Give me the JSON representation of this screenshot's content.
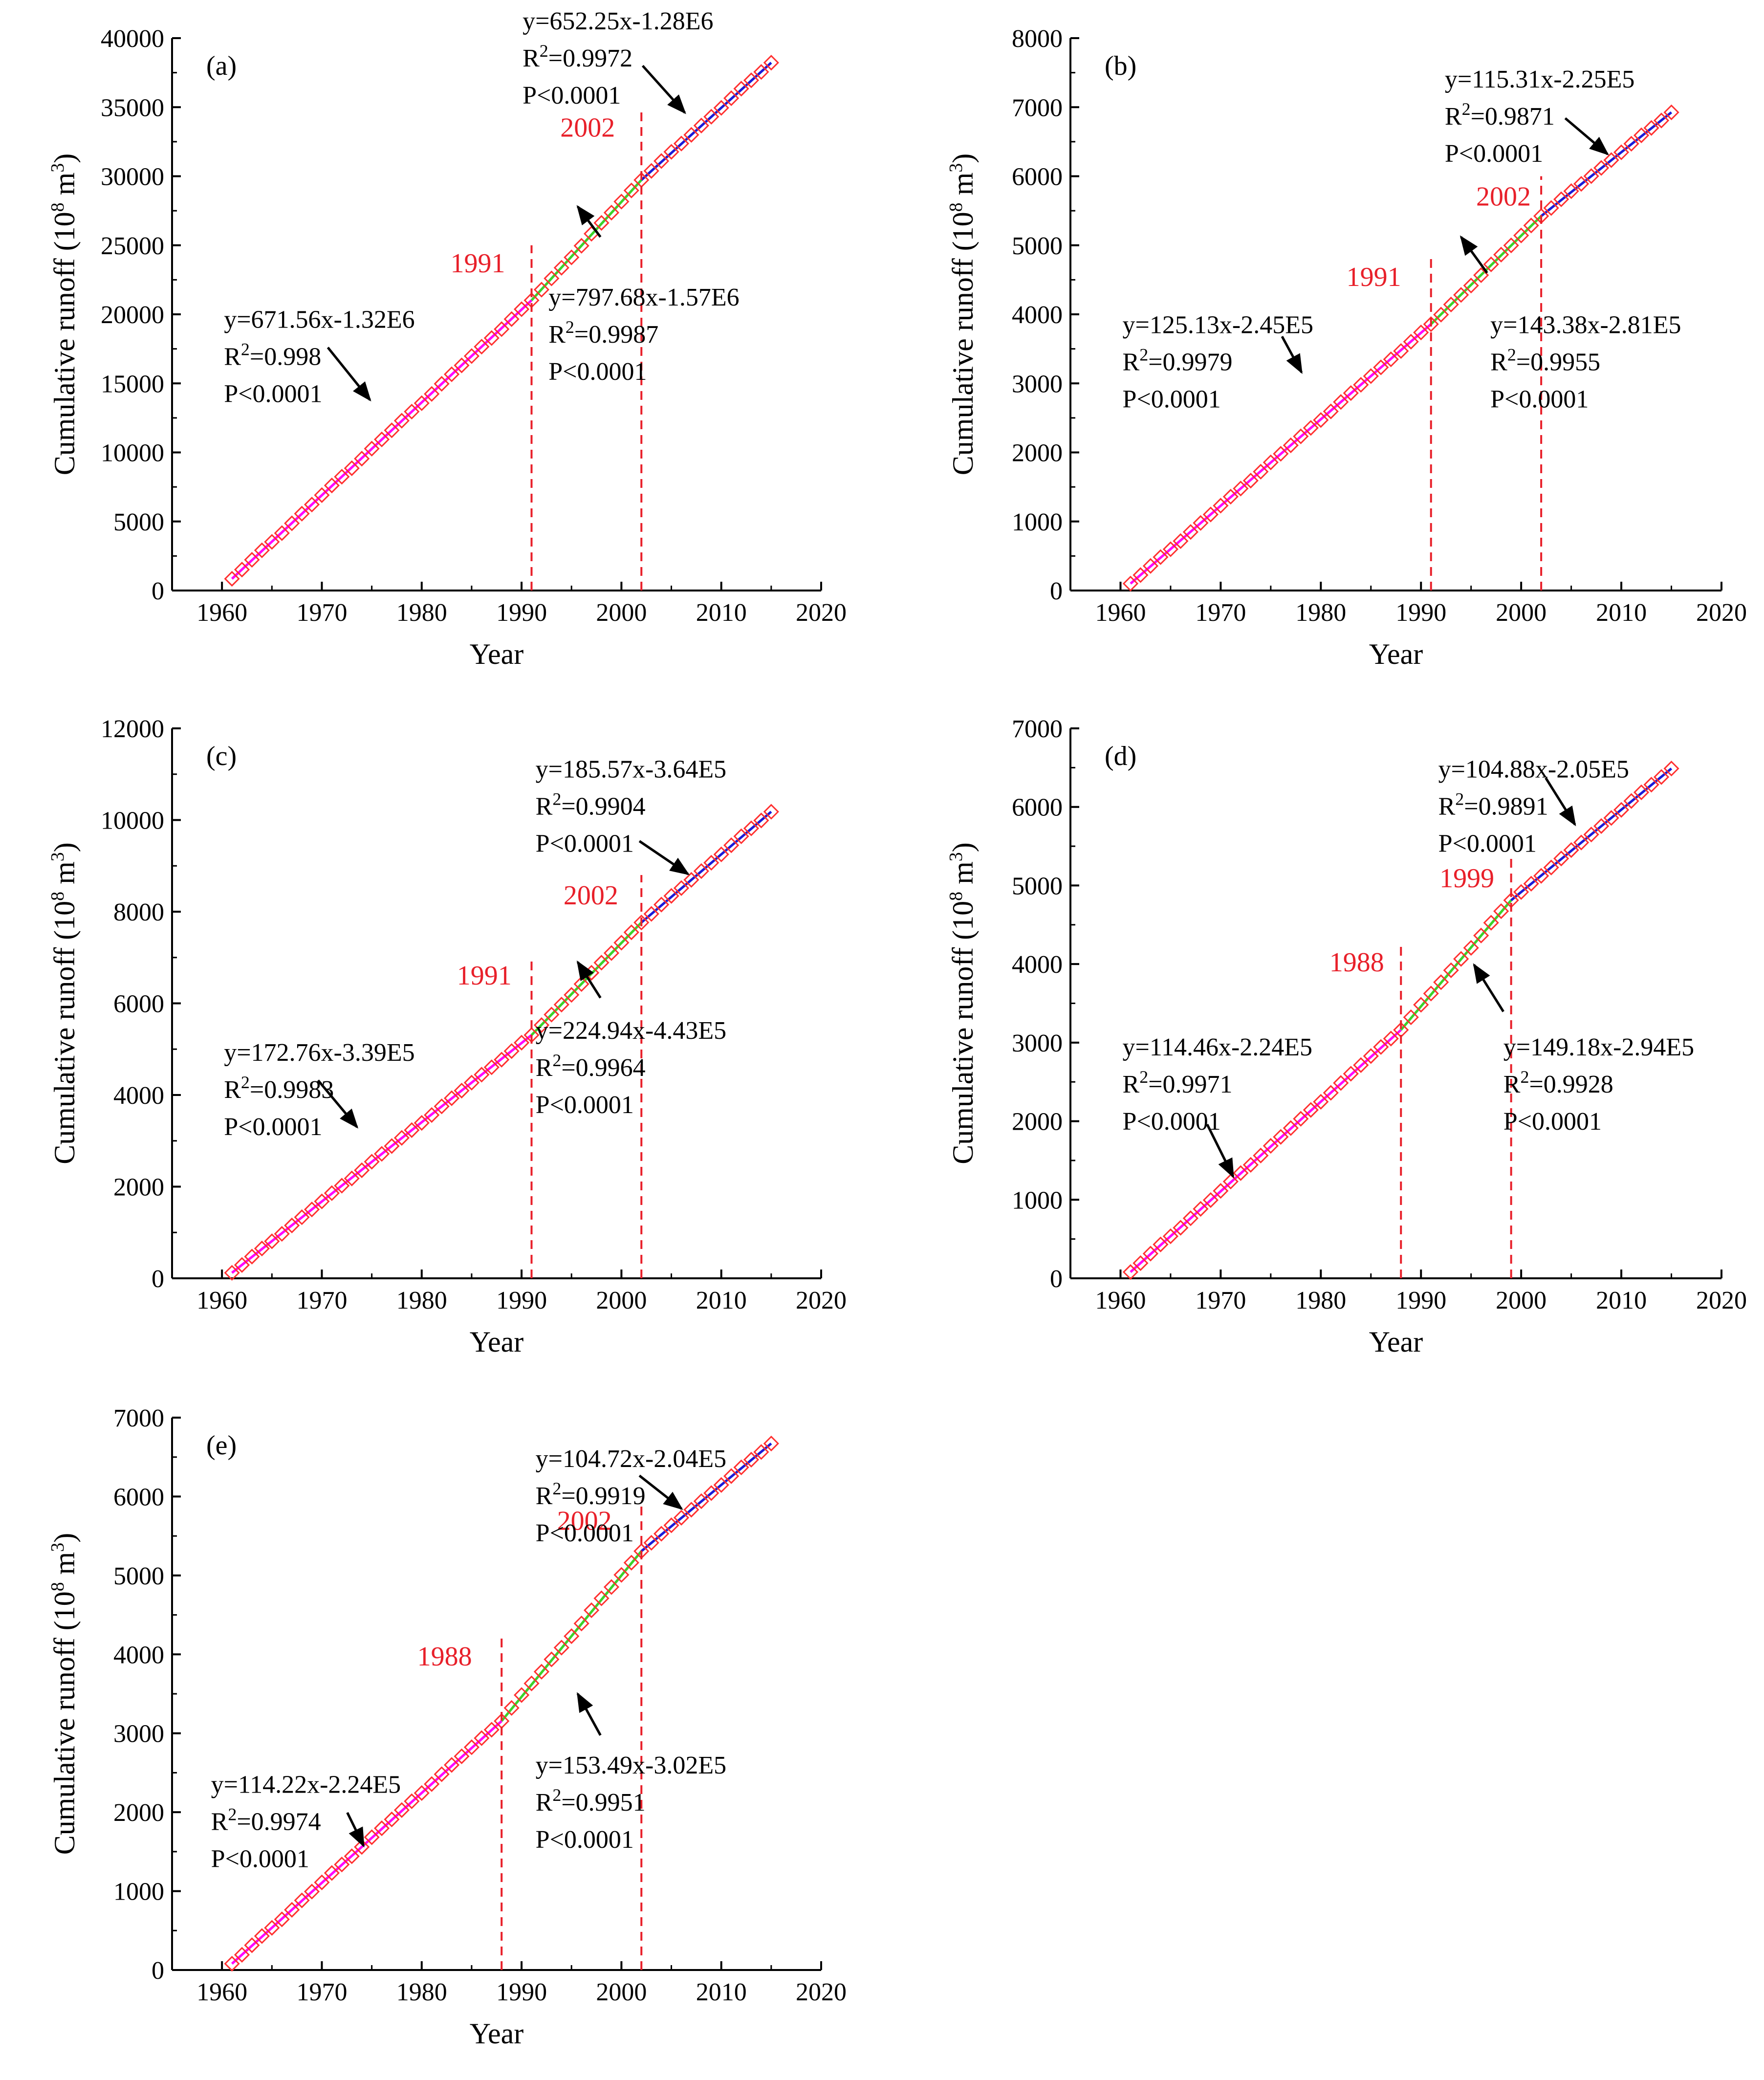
{
  "chart_data": [
    {
      "type": "scatter",
      "panel": "(a)",
      "xlabel": "Year",
      "ylabel_main": "Cumulative  runoff (10",
      "ylabel_sup1": "8",
      "ylabel_unit": " m",
      "ylabel_sup2": "3",
      "ylabel_close": ")",
      "xlim": [
        1955,
        2020
      ],
      "ylim": [
        0,
        40000
      ],
      "x_ticks": [
        1960,
        1970,
        1980,
        1990,
        2000,
        2010,
        2020
      ],
      "y_ticks": [
        0,
        5000,
        10000,
        15000,
        20000,
        25000,
        30000,
        35000,
        40000
      ],
      "y_start": 850,
      "segment_boundaries": [
        1991,
        2002
      ],
      "segment_slopes": [
        671.56,
        797.68,
        652.25
      ],
      "breakpoints": [
        {
          "year": 1991,
          "label": "1991",
          "line_top": 25000
        },
        {
          "year": 2002,
          "label": "2002",
          "line_top": 35000
        }
      ],
      "fits": [
        {
          "segment": 1,
          "color": "#ff00ff",
          "eq": "y=671.56x-1.32E6",
          "r2_prefix": "R",
          "r2_sup": "2",
          "r2_value": "=0.998",
          "p": "P<0.0001"
        },
        {
          "segment": 2,
          "color": "#3bd22a",
          "eq": "y=797.68x-1.57E6",
          "r2_prefix": "R",
          "r2_sup": "2",
          "r2_value": "=0.9987",
          "p": "P<0.0001"
        },
        {
          "segment": 3,
          "color": "#1a1ad8",
          "eq": "y=652.25x-1.28E6",
          "r2_prefix": "R",
          "r2_sup": "2",
          "r2_value": "=0.9972",
          "p": "P<0.0001"
        }
      ]
    },
    {
      "type": "scatter",
      "panel": "(b)",
      "xlabel": "Year",
      "ylabel_main": "Cumulative  runoff (10",
      "ylabel_sup1": "8",
      "ylabel_unit": " m",
      "ylabel_sup2": "3",
      "ylabel_close": ")",
      "xlim": [
        1955,
        2020
      ],
      "ylim": [
        0,
        8000
      ],
      "x_ticks": [
        1960,
        1970,
        1980,
        1990,
        2000,
        2010,
        2020
      ],
      "y_ticks": [
        0,
        1000,
        2000,
        3000,
        4000,
        5000,
        6000,
        7000,
        8000
      ],
      "y_start": 100,
      "segment_boundaries": [
        1991,
        2002
      ],
      "segment_slopes": [
        125.13,
        143.38,
        115.31
      ],
      "breakpoints": [
        {
          "year": 1991,
          "label": "1991",
          "line_top": 4800
        },
        {
          "year": 2002,
          "label": "2002",
          "line_top": 6000
        }
      ],
      "fits": [
        {
          "segment": 1,
          "color": "#ff00ff",
          "eq": "y=125.13x-2.45E5",
          "r2_prefix": "R",
          "r2_sup": "2",
          "r2_value": "=0.9979",
          "p": "P<0.0001"
        },
        {
          "segment": 2,
          "color": "#3bd22a",
          "eq": "y=143.38x-2.81E5",
          "r2_prefix": "R",
          "r2_sup": "2",
          "r2_value": "=0.9955",
          "p": "P<0.0001"
        },
        {
          "segment": 3,
          "color": "#1a1ad8",
          "eq": "y=115.31x-2.25E5",
          "r2_prefix": "R",
          "r2_sup": "2",
          "r2_value": "=0.9871",
          "p": "P<0.0001"
        }
      ]
    },
    {
      "type": "scatter",
      "panel": "(c)",
      "xlabel": "Year",
      "ylabel_main": "Cumulative  runoff (10",
      "ylabel_sup1": "8",
      "ylabel_unit": " m",
      "ylabel_sup2": "3",
      "ylabel_close": ")",
      "xlim": [
        1955,
        2020
      ],
      "ylim": [
        0,
        12000
      ],
      "x_ticks": [
        1960,
        1970,
        1980,
        1990,
        2000,
        2010,
        2020
      ],
      "y_ticks": [
        0,
        2000,
        4000,
        6000,
        8000,
        10000,
        12000
      ],
      "y_start": 120,
      "segment_boundaries": [
        1991,
        2002
      ],
      "segment_slopes": [
        172.76,
        224.94,
        185.57
      ],
      "breakpoints": [
        {
          "year": 1991,
          "label": "1991",
          "line_top": 7000
        },
        {
          "year": 2002,
          "label": "2002",
          "line_top": 8800
        }
      ],
      "fits": [
        {
          "segment": 1,
          "color": "#ff00ff",
          "eq": "y=172.76x-3.39E5",
          "r2_prefix": "R",
          "r2_sup": "2",
          "r2_value": "=0.9983",
          "p": "P<0.0001"
        },
        {
          "segment": 2,
          "color": "#3bd22a",
          "eq": "y=224.94x-4.43E5",
          "r2_prefix": "R",
          "r2_sup": "2",
          "r2_value": "=0.9964",
          "p": "P<0.0001"
        },
        {
          "segment": 3,
          "color": "#1a1ad8",
          "eq": "y=185.57x-3.64E5",
          "r2_prefix": "R",
          "r2_sup": "2",
          "r2_value": "=0.9904",
          "p": "P<0.0001"
        }
      ]
    },
    {
      "type": "scatter",
      "panel": "(d)",
      "xlabel": "Year",
      "ylabel_main": "Cumulative  runoff (10",
      "ylabel_sup1": "8",
      "ylabel_unit": " m",
      "ylabel_sup2": "3",
      "ylabel_close": ")",
      "xlim": [
        1955,
        2020
      ],
      "ylim": [
        0,
        7000
      ],
      "x_ticks": [
        1960,
        1970,
        1980,
        1990,
        2000,
        2010,
        2020
      ],
      "y_ticks": [
        0,
        1000,
        2000,
        3000,
        4000,
        5000,
        6000,
        7000
      ],
      "y_start": 80,
      "segment_boundaries": [
        1988,
        1999
      ],
      "segment_slopes": [
        114.46,
        149.18,
        104.88
      ],
      "breakpoints": [
        {
          "year": 1988,
          "label": "1988",
          "line_top": 4250
        },
        {
          "year": 1999,
          "label": "1999",
          "line_top": 5350
        }
      ],
      "fits": [
        {
          "segment": 1,
          "color": "#ff00ff",
          "eq": "y=114.46x-2.24E5",
          "r2_prefix": "R",
          "r2_sup": "2",
          "r2_value": "=0.9971",
          "p": "P<0.0001"
        },
        {
          "segment": 2,
          "color": "#3bd22a",
          "eq": "y=149.18x-2.94E5",
          "r2_prefix": "R",
          "r2_sup": "2",
          "r2_value": "=0.9928",
          "p": "P<0.0001"
        },
        {
          "segment": 3,
          "color": "#1a1ad8",
          "eq": "y=104.88x-2.05E5",
          "r2_prefix": "R",
          "r2_sup": "2",
          "r2_value": "=0.9891",
          "p": "P<0.0001"
        }
      ]
    },
    {
      "type": "scatter",
      "panel": "(e)",
      "xlabel": "Year",
      "ylabel_main": "Cumulative  runoff (10",
      "ylabel_sup1": "8",
      "ylabel_unit": " m",
      "ylabel_sup2": "3",
      "ylabel_close": ")",
      "xlim": [
        1955,
        2020
      ],
      "ylim": [
        0,
        7000
      ],
      "x_ticks": [
        1960,
        1970,
        1980,
        1990,
        2000,
        2010,
        2020
      ],
      "y_ticks": [
        0,
        1000,
        2000,
        3000,
        4000,
        5000,
        6000,
        7000
      ],
      "y_start": 80,
      "segment_boundaries": [
        1988,
        2002
      ],
      "segment_slopes": [
        114.22,
        153.49,
        104.72
      ],
      "breakpoints": [
        {
          "year": 1988,
          "label": "1988",
          "line_top": 4200
        },
        {
          "year": 2002,
          "label": "2002",
          "line_top": 5950
        }
      ],
      "fits": [
        {
          "segment": 1,
          "color": "#ff00ff",
          "eq": "y=114.22x-2.24E5",
          "r2_prefix": "R",
          "r2_sup": "2",
          "r2_value": "=0.9974",
          "p": "P<0.0001"
        },
        {
          "segment": 2,
          "color": "#3bd22a",
          "eq": "y=153.49x-3.02E5",
          "r2_prefix": "R",
          "r2_sup": "2",
          "r2_value": "=0.9951",
          "p": "P<0.0001"
        },
        {
          "segment": 3,
          "color": "#1a1ad8",
          "eq": "y=104.72x-2.04E5",
          "r2_prefix": "R",
          "r2_sup": "2",
          "r2_value": "=0.9919",
          "p": "P<0.0001"
        }
      ]
    }
  ],
  "style": {
    "marker_color": "#ff3030",
    "breakpoint_color": "#e8202a",
    "axis_color": "#000000"
  }
}
